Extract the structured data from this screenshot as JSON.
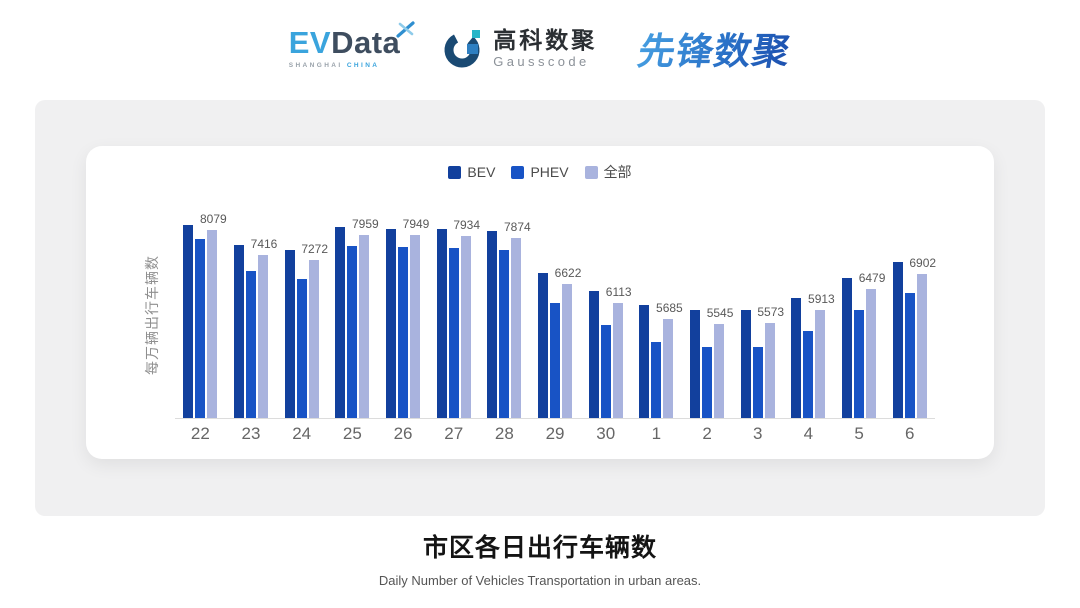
{
  "header": {
    "evdata": {
      "ev": "EV",
      "data": "Data",
      "sub_left": "SHANGHAI",
      "sub_right": "CHINA"
    },
    "gausscode": {
      "cn": "高科数聚",
      "en": "Gausscode"
    },
    "pioneer": {
      "cn": "先锋数聚"
    }
  },
  "chart_data": {
    "type": "bar",
    "title": "市区各日出行车辆数",
    "subtitle": "Daily Number of Vehicles Transportation in urban areas.",
    "ylabel": "每万辆出行车辆数",
    "categories": [
      "22",
      "23",
      "24",
      "25",
      "26",
      "27",
      "28",
      "29",
      "30",
      "1",
      "2",
      "3",
      "4",
      "5",
      "6"
    ],
    "series": [
      {
        "key": "bev",
        "name": "BEV",
        "color": "#12409D",
        "labels_shown": false,
        "values": [
          8217,
          7677,
          7542,
          8155,
          8119,
          8109,
          8047,
          6913,
          6445,
          6067,
          5914,
          5932,
          6246,
          6796,
          7218
        ]
      },
      {
        "key": "phev",
        "name": "PHEV",
        "color": "#1853C5",
        "labels_shown": false,
        "values": [
          7850,
          6967,
          6759,
          7642,
          7623,
          7596,
          7552,
          6103,
          5517,
          5058,
          4933,
          4923,
          5347,
          5932,
          6373
        ]
      },
      {
        "key": "all",
        "name": "全部",
        "color": "#A9B3DE",
        "labels_shown": true,
        "values": [
          8079,
          7416,
          7272,
          7959,
          7949,
          7934,
          7874,
          6622,
          6113,
          5685,
          5545,
          5573,
          5913,
          6479,
          6902
        ]
      }
    ],
    "ylim": [
      3000,
      8600
    ],
    "legend_position": "top",
    "grid": false
  }
}
